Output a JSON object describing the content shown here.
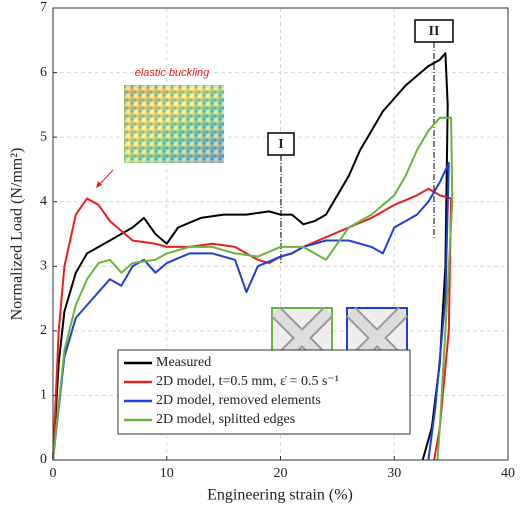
{
  "chart_data": {
    "type": "line",
    "xlabel": "Engineering strain (%)",
    "ylabel": "Normalized Load (N/mm²)",
    "xlim": [
      0,
      40
    ],
    "xticks": [
      0,
      10,
      20,
      30,
      40
    ],
    "ylim": [
      0,
      7
    ],
    "yticks": [
      0,
      1,
      2,
      3,
      4,
      5,
      6,
      7
    ],
    "grid": true,
    "legend": "lower-center",
    "annotations": {
      "buckling": "elastic buckling",
      "point_1": "I",
      "point_2": "II"
    },
    "series": [
      {
        "name": "Measured",
        "color": "#000000",
        "x": [
          0,
          0.5,
          1,
          2,
          3,
          5,
          7,
          8,
          9,
          10,
          11,
          13,
          15,
          17,
          19,
          20,
          21,
          22,
          23,
          24,
          25,
          26,
          27,
          28,
          29,
          30,
          31,
          32,
          33,
          34,
          34.5,
          34.7,
          34.5,
          34,
          33.3,
          32.5
        ],
        "values": [
          0,
          1.5,
          2.3,
          2.9,
          3.2,
          3.4,
          3.6,
          3.75,
          3.5,
          3.35,
          3.6,
          3.75,
          3.8,
          3.8,
          3.85,
          3.8,
          3.8,
          3.65,
          3.7,
          3.8,
          4.1,
          4.4,
          4.8,
          5.1,
          5.4,
          5.6,
          5.8,
          5.95,
          6.1,
          6.2,
          6.3,
          5.5,
          3,
          1.5,
          0.5,
          0
        ]
      },
      {
        "name": "2D model, t=0.5 mm, ε̇ = 0.5 s⁻¹",
        "color": "#e8211f",
        "x": [
          0,
          0.5,
          1,
          2,
          3,
          4,
          5,
          7,
          9,
          10,
          12,
          14,
          16,
          18,
          19,
          20,
          21,
          22,
          24,
          26,
          28,
          30,
          32,
          33,
          34,
          35,
          34.8,
          34,
          33.5
        ],
        "values": [
          0,
          2,
          3,
          3.8,
          4.05,
          3.95,
          3.7,
          3.4,
          3.35,
          3.3,
          3.3,
          3.35,
          3.3,
          3.1,
          3.05,
          3.15,
          3.2,
          3.3,
          3.45,
          3.6,
          3.75,
          3.95,
          4.1,
          4.2,
          4.1,
          4.05,
          2,
          0.5,
          0
        ]
      },
      {
        "name": "2D model, removed elements",
        "color": "#1f3fd6",
        "x": [
          0,
          1,
          2,
          4,
          5,
          6,
          7,
          8,
          9,
          10,
          12,
          14,
          16,
          17,
          18,
          20,
          21,
          22,
          24,
          26,
          28,
          29,
          30,
          32,
          33,
          34,
          34.8,
          34.5,
          33.6,
          33
        ],
        "values": [
          0,
          1.6,
          2.2,
          2.6,
          2.8,
          2.7,
          3.0,
          3.1,
          2.9,
          3.05,
          3.2,
          3.2,
          3.1,
          2.6,
          3.0,
          3.15,
          3.2,
          3.3,
          3.4,
          3.4,
          3.3,
          3.2,
          3.6,
          3.8,
          4.0,
          4.3,
          4.6,
          2.5,
          0.8,
          0
        ]
      },
      {
        "name": "2D model, splitted edges",
        "color": "#6ab43e",
        "x": [
          0,
          1,
          2,
          3,
          4,
          5,
          6,
          7,
          9,
          10,
          12,
          14,
          16,
          18,
          20,
          22,
          24,
          26,
          28,
          30,
          31,
          32,
          33,
          34,
          35,
          35.1,
          34.5,
          34,
          33.8
        ],
        "values": [
          0,
          1.7,
          2.4,
          2.8,
          3.05,
          3.1,
          2.9,
          3.05,
          3.1,
          3.2,
          3.3,
          3.3,
          3.2,
          3.15,
          3.3,
          3.3,
          3.1,
          3.6,
          3.8,
          4.1,
          4.4,
          4.8,
          5.1,
          5.3,
          5.3,
          4,
          2,
          0.5,
          0
        ]
      }
    ]
  }
}
